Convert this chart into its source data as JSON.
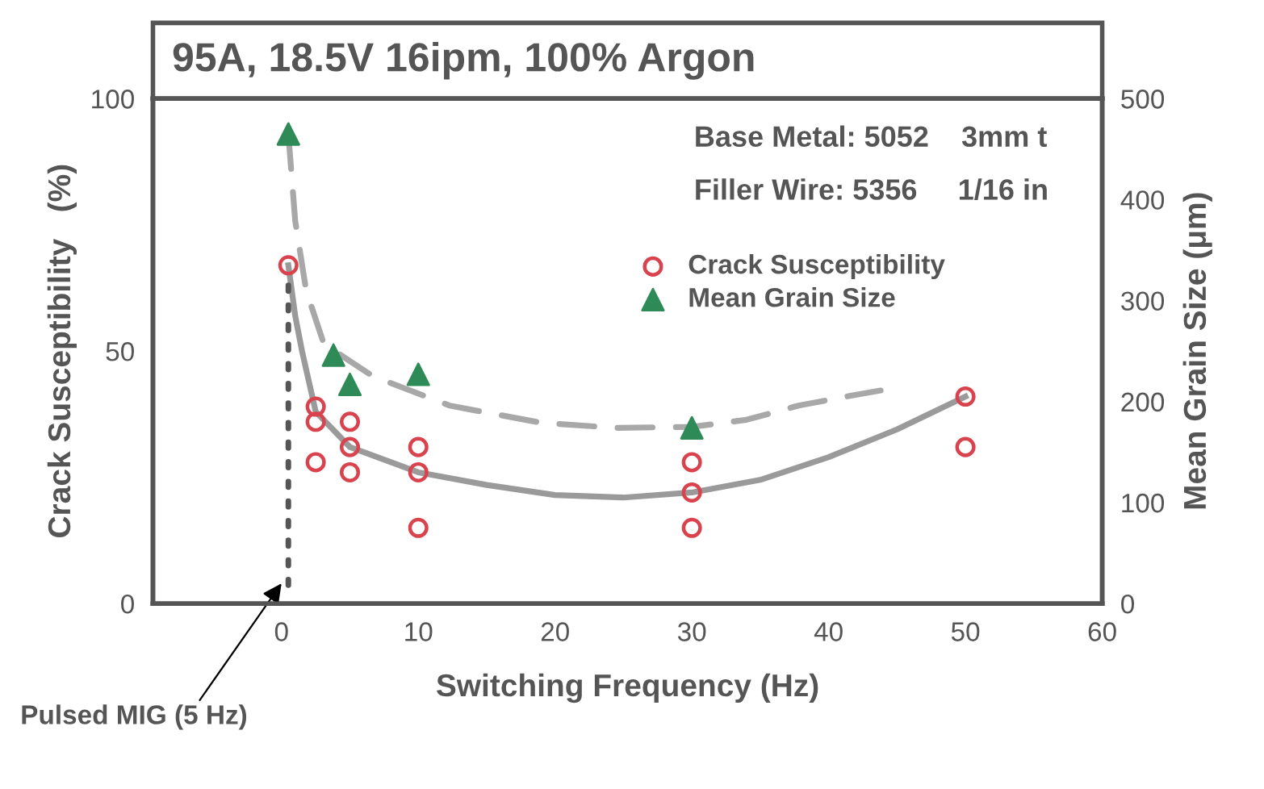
{
  "chart_data": {
    "type": "scatter",
    "title": "95A, 18.5V 16ipm, 100% Argon",
    "xlabel": "Switching Frequency (Hz)",
    "ylabel": "Crack Susceptibility   (%)",
    "y2label": "Mean Grain Size (μm)",
    "xlim": [
      -9.4,
      60
    ],
    "xticks": [
      0,
      10,
      20,
      30,
      40,
      50,
      60
    ],
    "ylim": [
      0,
      100
    ],
    "yticks": [
      0,
      50,
      100
    ],
    "y2lim": [
      0,
      500
    ],
    "y2ticks": [
      0,
      100,
      200,
      300,
      400,
      500
    ],
    "grid": false,
    "legend": "top right",
    "annotations": [
      "Base Metal: 5052    3mm t",
      "Filler Wire: 5356     1/16 in",
      {
        "text": "Pulsed MIG (5 Hz)",
        "x": 0,
        "y": 4
      }
    ],
    "series": [
      {
        "name": "Crack Susceptibility",
        "marker": "circle",
        "color": "#d9434e",
        "x": [
          0.5,
          2.5,
          2.5,
          2.5,
          5,
          5,
          5,
          10,
          10,
          10,
          30,
          30,
          30,
          50,
          50
        ],
        "values": [
          67,
          39,
          36,
          28,
          36,
          31,
          26,
          31,
          26,
          15,
          28,
          22,
          15,
          41,
          31
        ]
      },
      {
        "name": "Mean Grain Size",
        "marker": "triangle",
        "axis": "y2",
        "color": "#2e8b57",
        "x": [
          0.5,
          3.8,
          5,
          10,
          30
        ],
        "values": [
          465,
          246,
          217,
          227,
          174
        ]
      },
      {
        "type": "line",
        "marker": "none",
        "line_style": "solid",
        "color": "#9a9a9a",
        "x": [
          0.5,
          1,
          1.5,
          2.5,
          5,
          10,
          15,
          20,
          25,
          30,
          35,
          40,
          45,
          50
        ],
        "values": [
          67,
          57,
          50,
          38,
          31,
          26,
          23.5,
          21.5,
          21,
          22,
          24.5,
          29,
          34.5,
          41
        ]
      },
      {
        "type": "line",
        "marker": "none",
        "line_style": "dashed",
        "axis": "y2",
        "color": "#a8a8a8",
        "x": [
          0.5,
          1,
          1.8,
          3.1,
          6.7,
          12.3,
          19,
          24.5,
          30,
          34,
          37.8,
          41.7,
          43.8
        ],
        "values": [
          465,
          379,
          310,
          257,
          225,
          196,
          179,
          174,
          175,
          182,
          196,
          206,
          211
        ]
      },
      {
        "type": "line",
        "marker": "none",
        "line_style": "dotted",
        "color": "#555555",
        "x": [
          0.5,
          0.5
        ],
        "values": [
          63,
          2
        ]
      }
    ]
  }
}
